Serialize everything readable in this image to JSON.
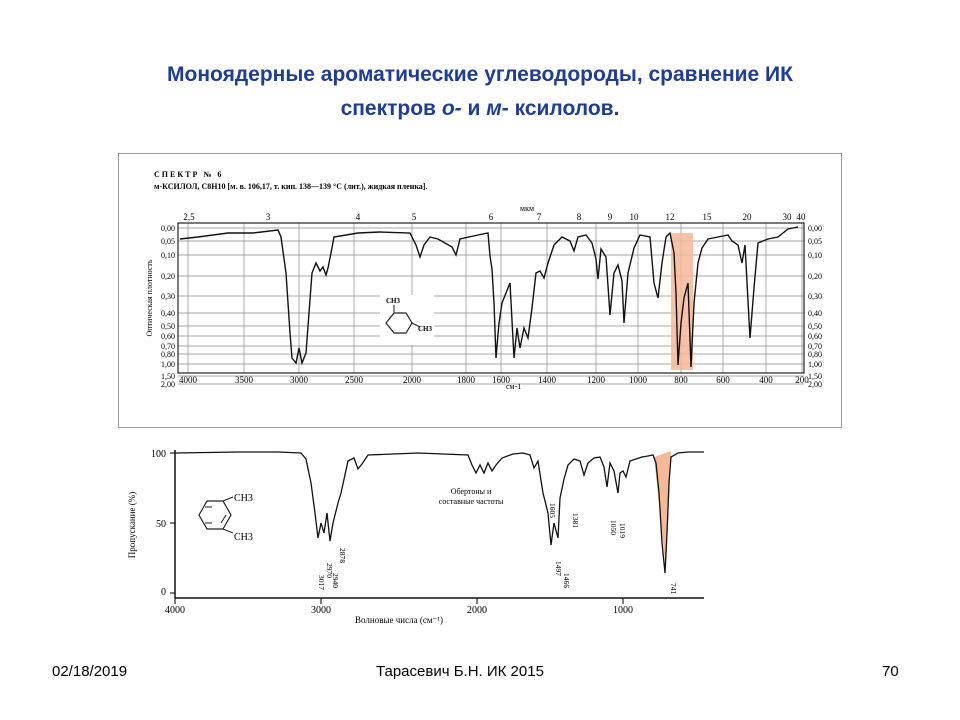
{
  "title": {
    "line1": "Моноядерные ароматические углеводороды, сравнение ИК",
    "line2_a": "спектров ",
    "line2_o": "о-",
    "line2_b": " и ",
    "line2_m": "м-",
    "line2_c": " ксилолов."
  },
  "footer": {
    "date": "02/18/2019",
    "author": "Тарасевич Б.Н.  ИК 2015",
    "page": "70"
  },
  "spectrum_m": {
    "header1": "СПЕКТР № 6",
    "header2": "м-КСИЛОЛ, C8H10 [м. в. 106,17, т. кип. 138—139 °C (лит.), жидкая пленка].",
    "top_unit": "мкм",
    "top_ticks": [
      "2,5",
      "3",
      "4",
      "5",
      "6",
      "7",
      "8",
      "9",
      "10",
      "12",
      "15",
      "20",
      "30",
      "40"
    ],
    "left_axis": "Оптическая плотность",
    "right_ticks": [
      "0,00",
      "0,05",
      "0,10",
      "0,20",
      "0,30",
      "0,40",
      "0,50",
      "0,60",
      "0,70",
      "0,80",
      "1,00",
      "1,50",
      "2,00"
    ],
    "bottom_ticks": [
      "4000",
      "3500",
      "3000",
      "2500",
      "2000",
      "1800",
      "1600",
      "1400",
      "1200",
      "1000",
      "800",
      "600",
      "400",
      "200"
    ],
    "bottom_unit": "см-1",
    "struct_ch3_top": "CH3",
    "struct_ch3_side": "CH3",
    "highlight_color": "#f4b99a"
  },
  "spectrum_o": {
    "y_label": "Пропускание (%)",
    "y_ticks": [
      "100",
      "50",
      "0"
    ],
    "x_label": "Волновые числа (см⁻¹)",
    "x_ticks": [
      "4000",
      "3000",
      "2000",
      "1000"
    ],
    "struct_ch3_top": "CH3",
    "struct_ch3_bottom": "CH3",
    "annotation_line1": "Обертоны и",
    "annotation_line2": "составные частоты",
    "peaks": [
      "3017",
      "2970",
      "2940",
      "2878",
      "1605",
      "1497",
      "1466",
      "1381",
      "1050",
      "1019",
      "741"
    ],
    "highlight_color": "#f4b99a"
  }
}
